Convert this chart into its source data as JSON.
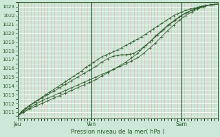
{
  "xlabel": "Pression niveau de la mer( hPa )",
  "ylim": [
    1010.3,
    1023.5
  ],
  "yticks": [
    1011,
    1012,
    1013,
    1014,
    1015,
    1016,
    1017,
    1018,
    1019,
    1020,
    1021,
    1022,
    1023
  ],
  "day_labels": [
    "Jeu",
    "Ven",
    "Sam"
  ],
  "day_positions": [
    0.0,
    0.37,
    0.82
  ],
  "bg_color": "#cce8d8",
  "grid_color_major": "#ffffff",
  "grid_color_minor": "#e8b0b0",
  "line_color": "#2a5c2a",
  "series": [
    [
      0.0,
      1010.6
    ],
    [
      0.02,
      1011.1
    ],
    [
      0.04,
      1011.5
    ],
    [
      0.06,
      1011.8
    ],
    [
      0.08,
      1012.1
    ],
    [
      0.1,
      1012.4
    ],
    [
      0.12,
      1012.7
    ],
    [
      0.14,
      1013.0
    ],
    [
      0.16,
      1013.3
    ],
    [
      0.18,
      1013.6
    ],
    [
      0.2,
      1013.9
    ],
    [
      0.22,
      1014.2
    ],
    [
      0.24,
      1014.5
    ],
    [
      0.26,
      1014.8
    ],
    [
      0.28,
      1015.1
    ],
    [
      0.3,
      1015.4
    ],
    [
      0.32,
      1015.7
    ],
    [
      0.34,
      1016.1
    ],
    [
      0.36,
      1016.4
    ],
    [
      0.38,
      1016.7
    ],
    [
      0.4,
      1017.0
    ],
    [
      0.42,
      1017.3
    ],
    [
      0.44,
      1017.5
    ],
    [
      0.46,
      1017.7
    ],
    [
      0.48,
      1017.9
    ],
    [
      0.5,
      1018.1
    ],
    [
      0.52,
      1018.35
    ],
    [
      0.54,
      1018.6
    ],
    [
      0.56,
      1018.85
    ],
    [
      0.58,
      1019.1
    ],
    [
      0.6,
      1019.35
    ],
    [
      0.62,
      1019.6
    ],
    [
      0.64,
      1019.9
    ],
    [
      0.66,
      1020.2
    ],
    [
      0.68,
      1020.5
    ],
    [
      0.7,
      1020.8
    ],
    [
      0.72,
      1021.1
    ],
    [
      0.74,
      1021.4
    ],
    [
      0.76,
      1021.7
    ],
    [
      0.78,
      1022.0
    ],
    [
      0.8,
      1022.2
    ],
    [
      0.82,
      1022.4
    ],
    [
      0.84,
      1022.6
    ],
    [
      0.86,
      1022.75
    ],
    [
      0.88,
      1022.85
    ],
    [
      0.9,
      1022.95
    ],
    [
      0.92,
      1023.05
    ],
    [
      0.94,
      1023.15
    ],
    [
      0.96,
      1023.22
    ],
    [
      0.98,
      1023.28
    ],
    [
      1.0,
      1023.3
    ]
  ],
  "series2": [
    [
      0.0,
      1010.6
    ],
    [
      0.03,
      1011.2
    ],
    [
      0.06,
      1011.7
    ],
    [
      0.09,
      1012.2
    ],
    [
      0.12,
      1012.6
    ],
    [
      0.15,
      1013.0
    ],
    [
      0.18,
      1013.4
    ],
    [
      0.21,
      1013.8
    ],
    [
      0.24,
      1014.2
    ],
    [
      0.27,
      1014.6
    ],
    [
      0.3,
      1015.0
    ],
    [
      0.33,
      1015.4
    ],
    [
      0.36,
      1015.8
    ],
    [
      0.39,
      1016.2
    ],
    [
      0.42,
      1016.7
    ],
    [
      0.45,
      1017.1
    ],
    [
      0.48,
      1017.4
    ],
    [
      0.5,
      1017.5
    ],
    [
      0.52,
      1017.55
    ],
    [
      0.54,
      1017.55
    ],
    [
      0.56,
      1017.6
    ],
    [
      0.58,
      1017.7
    ],
    [
      0.61,
      1018.1
    ],
    [
      0.64,
      1018.6
    ],
    [
      0.67,
      1019.2
    ],
    [
      0.7,
      1019.8
    ],
    [
      0.73,
      1020.4
    ],
    [
      0.76,
      1021.0
    ],
    [
      0.79,
      1021.5
    ],
    [
      0.82,
      1022.0
    ],
    [
      0.85,
      1022.4
    ],
    [
      0.88,
      1022.7
    ],
    [
      0.91,
      1023.0
    ],
    [
      0.94,
      1023.15
    ],
    [
      0.97,
      1023.25
    ],
    [
      1.0,
      1023.3
    ]
  ],
  "series3": [
    [
      0.0,
      1010.6
    ],
    [
      0.03,
      1011.1
    ],
    [
      0.06,
      1011.5
    ],
    [
      0.09,
      1011.9
    ],
    [
      0.12,
      1012.3
    ],
    [
      0.15,
      1012.6
    ],
    [
      0.18,
      1012.9
    ],
    [
      0.21,
      1013.2
    ],
    [
      0.24,
      1013.5
    ],
    [
      0.27,
      1013.8
    ],
    [
      0.3,
      1014.1
    ],
    [
      0.33,
      1014.4
    ],
    [
      0.36,
      1014.7
    ],
    [
      0.39,
      1015.0
    ],
    [
      0.42,
      1015.3
    ],
    [
      0.45,
      1015.6
    ],
    [
      0.48,
      1015.9
    ],
    [
      0.51,
      1016.2
    ],
    [
      0.54,
      1016.5
    ],
    [
      0.57,
      1016.85
    ],
    [
      0.6,
      1017.2
    ],
    [
      0.63,
      1017.7
    ],
    [
      0.66,
      1018.3
    ],
    [
      0.69,
      1018.9
    ],
    [
      0.72,
      1019.6
    ],
    [
      0.75,
      1020.3
    ],
    [
      0.78,
      1020.9
    ],
    [
      0.81,
      1021.5
    ],
    [
      0.84,
      1022.0
    ],
    [
      0.87,
      1022.4
    ],
    [
      0.9,
      1022.75
    ],
    [
      0.93,
      1023.0
    ],
    [
      0.96,
      1023.2
    ],
    [
      1.0,
      1023.3
    ]
  ],
  "series4": [
    [
      0.0,
      1010.6
    ],
    [
      0.03,
      1011.0
    ],
    [
      0.06,
      1011.4
    ],
    [
      0.09,
      1011.7
    ],
    [
      0.12,
      1012.0
    ],
    [
      0.15,
      1012.3
    ],
    [
      0.18,
      1012.6
    ],
    [
      0.21,
      1012.9
    ],
    [
      0.24,
      1013.2
    ],
    [
      0.27,
      1013.5
    ],
    [
      0.3,
      1013.8
    ],
    [
      0.33,
      1014.1
    ],
    [
      0.36,
      1014.4
    ],
    [
      0.39,
      1014.7
    ],
    [
      0.42,
      1015.1
    ],
    [
      0.45,
      1015.5
    ],
    [
      0.48,
      1015.9
    ],
    [
      0.51,
      1016.3
    ],
    [
      0.54,
      1016.7
    ],
    [
      0.57,
      1017.2
    ],
    [
      0.6,
      1017.7
    ],
    [
      0.63,
      1018.4
    ],
    [
      0.66,
      1019.0
    ],
    [
      0.69,
      1019.7
    ],
    [
      0.72,
      1020.3
    ],
    [
      0.75,
      1020.9
    ],
    [
      0.78,
      1021.4
    ],
    [
      0.81,
      1021.9
    ],
    [
      0.84,
      1022.3
    ],
    [
      0.87,
      1022.6
    ],
    [
      0.9,
      1022.85
    ],
    [
      0.93,
      1023.05
    ],
    [
      0.96,
      1023.2
    ],
    [
      1.0,
      1023.3
    ]
  ]
}
